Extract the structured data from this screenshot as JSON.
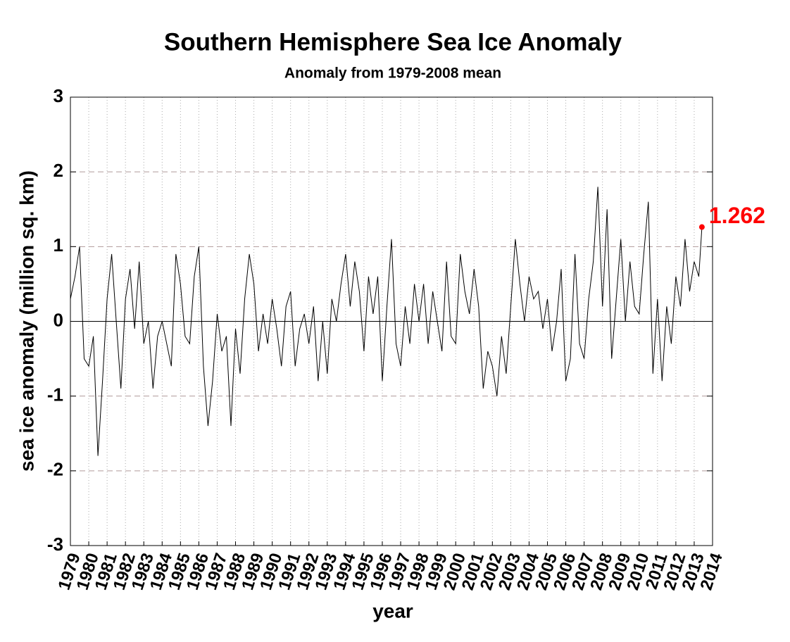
{
  "chart_data": {
    "type": "line",
    "title": "Southern Hemisphere Sea Ice Anomaly",
    "subtitle": "Anomaly from 1979-2008 mean",
    "x_label": "year",
    "y_label": "sea ice anomaly (million sq. km)",
    "color": "#000000",
    "x": [
      1979.0,
      1979.25,
      1979.5,
      1979.75,
      1980.0,
      1980.25,
      1980.5,
      1980.75,
      1981.0,
      1981.25,
      1981.5,
      1981.75,
      1982.0,
      1982.25,
      1982.5,
      1982.75,
      1983.0,
      1983.25,
      1983.5,
      1983.75,
      1984.0,
      1984.25,
      1984.5,
      1984.75,
      1985.0,
      1985.25,
      1985.5,
      1985.75,
      1986.0,
      1986.25,
      1986.5,
      1986.75,
      1987.0,
      1987.25,
      1987.5,
      1987.75,
      1988.0,
      1988.25,
      1988.5,
      1988.75,
      1989.0,
      1989.25,
      1989.5,
      1989.75,
      1990.0,
      1990.25,
      1990.5,
      1990.75,
      1991.0,
      1991.25,
      1991.5,
      1991.75,
      1992.0,
      1992.25,
      1992.5,
      1992.75,
      1993.0,
      1993.25,
      1993.5,
      1993.75,
      1994.0,
      1994.25,
      1994.5,
      1994.75,
      1995.0,
      1995.25,
      1995.5,
      1995.75,
      1996.0,
      1996.25,
      1996.5,
      1996.75,
      1997.0,
      1997.25,
      1997.5,
      1997.75,
      1998.0,
      1998.25,
      1998.5,
      1998.75,
      1999.0,
      1999.25,
      1999.5,
      1999.75,
      2000.0,
      2000.25,
      2000.5,
      2000.75,
      2001.0,
      2001.25,
      2001.5,
      2001.75,
      2002.0,
      2002.25,
      2002.5,
      2002.75,
      2003.0,
      2003.25,
      2003.5,
      2003.75,
      2004.0,
      2004.25,
      2004.5,
      2004.75,
      2005.0,
      2005.25,
      2005.5,
      2005.75,
      2006.0,
      2006.25,
      2006.5,
      2006.75,
      2007.0,
      2007.25,
      2007.5,
      2007.75,
      2008.0,
      2008.25,
      2008.5,
      2008.75,
      2009.0,
      2009.25,
      2009.5,
      2009.75,
      2010.0,
      2010.25,
      2010.5,
      2010.75,
      2011.0,
      2011.25,
      2011.5,
      2011.75,
      2012.0,
      2012.25,
      2012.5,
      2012.75,
      2013.0,
      2013.25,
      2013.42
    ],
    "values": [
      0.3,
      0.6,
      1.0,
      -0.5,
      -0.6,
      -0.2,
      -1.8,
      -0.8,
      0.3,
      0.9,
      0.0,
      -0.9,
      0.3,
      0.7,
      -0.1,
      0.8,
      -0.3,
      0.0,
      -0.9,
      -0.2,
      0.0,
      -0.3,
      -0.6,
      0.9,
      0.5,
      -0.2,
      -0.3,
      0.6,
      1.0,
      -0.6,
      -1.4,
      -0.8,
      0.1,
      -0.4,
      -0.2,
      -1.4,
      -0.1,
      -0.7,
      0.3,
      0.9,
      0.5,
      -0.4,
      0.1,
      -0.3,
      0.3,
      -0.1,
      -0.6,
      0.2,
      0.4,
      -0.6,
      -0.1,
      0.1,
      -0.3,
      0.2,
      -0.8,
      0.0,
      -0.7,
      0.3,
      0.0,
      0.5,
      0.9,
      0.2,
      0.8,
      0.4,
      -0.4,
      0.6,
      0.1,
      0.6,
      -0.8,
      0.2,
      1.1,
      -0.3,
      -0.6,
      0.2,
      -0.3,
      0.5,
      0.0,
      0.5,
      -0.3,
      0.4,
      0.0,
      -0.4,
      0.8,
      -0.2,
      -0.3,
      0.9,
      0.4,
      0.1,
      0.7,
      0.2,
      -0.9,
      -0.4,
      -0.6,
      -1.0,
      -0.2,
      -0.7,
      0.2,
      1.1,
      0.5,
      0.0,
      0.6,
      0.3,
      0.4,
      -0.1,
      0.3,
      -0.4,
      0.0,
      0.7,
      -0.8,
      -0.5,
      0.9,
      -0.3,
      -0.5,
      0.3,
      0.8,
      1.8,
      0.2,
      1.5,
      -0.5,
      0.3,
      1.1,
      0.0,
      0.8,
      0.2,
      0.1,
      0.9,
      1.6,
      -0.7,
      0.3,
      -0.8,
      0.2,
      -0.3,
      0.6,
      0.2,
      1.1,
      0.4,
      0.8,
      0.6,
      1.262
    ],
    "annotation": {
      "label": "1.262",
      "x": 2013.42,
      "value": 1.262,
      "color": "#ff0000"
    },
    "xlim": [
      1979,
      2014
    ],
    "xticks": [
      1979,
      1980,
      1981,
      1982,
      1983,
      1984,
      1985,
      1986,
      1987,
      1988,
      1989,
      1990,
      1991,
      1992,
      1993,
      1994,
      1995,
      1996,
      1997,
      1998,
      1999,
      2000,
      2001,
      2002,
      2003,
      2004,
      2005,
      2006,
      2007,
      2008,
      2009,
      2010,
      2011,
      2012,
      2013,
      2014
    ],
    "ylim": [
      -3,
      3
    ],
    "yticks": [
      -3,
      -2,
      -1,
      0,
      1,
      2,
      3
    ],
    "grid": true
  }
}
